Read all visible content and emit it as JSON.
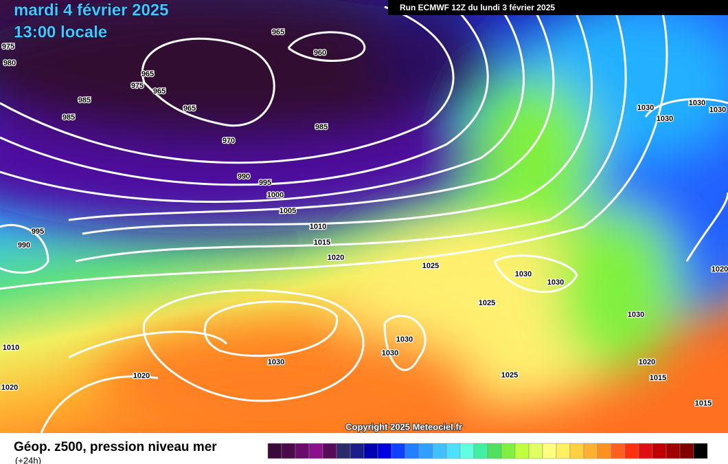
{
  "header": {
    "date": "mardi 4 février 2025",
    "time": "13:00 locale",
    "run": "Run ECMWF 12Z du lundi 3 février 2025"
  },
  "map": {
    "copyright": "Copyright 2025 Meteociel.fr",
    "isobar_labels": [
      "965",
      "960",
      "965",
      "975",
      "965",
      "985",
      "985",
      "965",
      "970",
      "985",
      "990",
      "995",
      "1000",
      "1005",
      "1010",
      "1015",
      "1020",
      "995",
      "990",
      "1025",
      "1030",
      "1030",
      "1025",
      "1030",
      "1030",
      "1030",
      "1030",
      "1020",
      "1025",
      "1020",
      "1015",
      "1015",
      "1030",
      "1030",
      "1030",
      "1030",
      "1010",
      "1020",
      "975",
      "980",
      "1020"
    ]
  },
  "footer": {
    "title": "Géop. z500, pression niveau mer",
    "subtitle": "(+24h)",
    "colorbar": [
      "#3a0a3a",
      "#4b0b4b",
      "#6b0b6b",
      "#8b108b",
      "#5a0a5a",
      "#2b2b6b",
      "#1c1c8b",
      "#0000b0",
      "#0000e0",
      "#1040ff",
      "#2080ff",
      "#30a0ff",
      "#40c0ff",
      "#50e0ff",
      "#60ffe0",
      "#40f0a0",
      "#50e060",
      "#80f040",
      "#c0ff40",
      "#e0ff60",
      "#ffff80",
      "#fff060",
      "#ffd040",
      "#ffb030",
      "#ff9020",
      "#ff6020",
      "#ff3010",
      "#e01010",
      "#c00000",
      "#a00000",
      "#800000",
      "#000000"
    ]
  }
}
